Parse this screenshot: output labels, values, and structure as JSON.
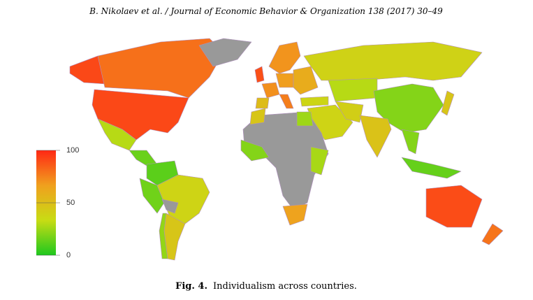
{
  "header": {
    "title": "B. Nikolaev et al. / Journal of Economic Behavior & Organization 138 (2017) 30–49"
  },
  "map": {
    "type": "choropleth",
    "values": [
      91,
      80,
      91,
      null,
      30,
      15,
      12,
      16,
      38,
      null,
      46,
      23,
      89,
      70,
      71,
      51,
      67,
      76,
      60,
      39,
      37,
      30,
      38,
      41,
      20,
      48,
      20,
      46,
      14,
      null,
      46,
      25,
      20,
      27,
      65,
      90,
      79
    ],
    "no_data_color": "#999999",
    "color_stops": [
      "#1ec81e",
      "#c8dc14",
      "#f0a01e",
      "#ff2814"
    ],
    "lim": [
      0,
      100
    ],
    "ticks": [
      0,
      50,
      100
    ]
  },
  "caption": {
    "label": "Fig. 4.",
    "text": "Individualism across countries."
  }
}
